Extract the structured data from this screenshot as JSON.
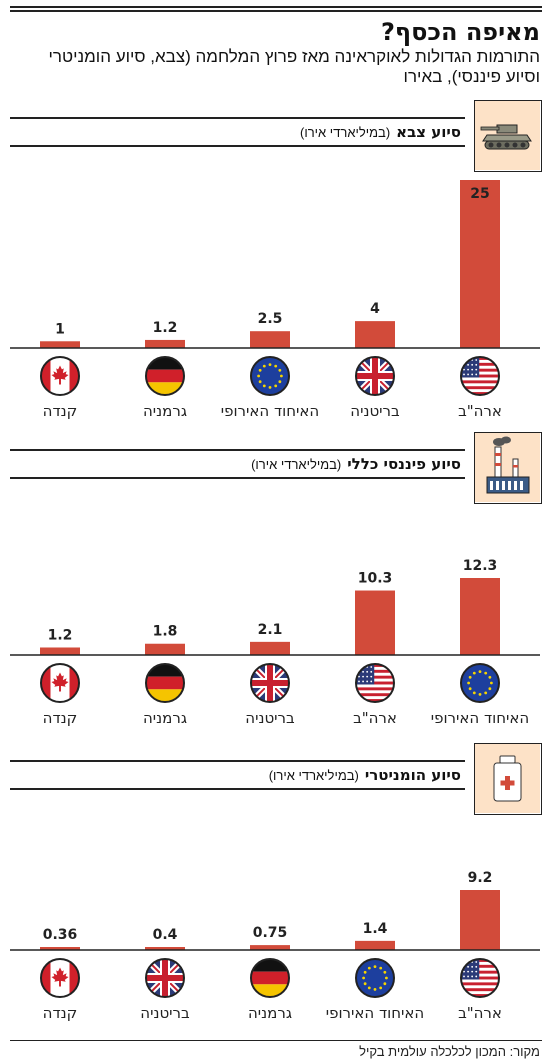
{
  "title": "מאיפה הכסף?",
  "subtitle": "התורמות הגדולות לאוקראינה מאז פרוץ המלחמה (צבא, סיוע הומניטרי וסיוע פיננסי), באירו",
  "source": "מקור: המכון לכלכלה עולמית בקיל",
  "colors": {
    "bar": "#d24b3a",
    "icon_bg": "#fde2c7",
    "axis": "#222222"
  },
  "chart_data": [
    {
      "type": "bar",
      "title": "סיוע צבא",
      "unit": "(במיליארדי אירו)",
      "icon": "tank-icon",
      "categories": [
        "ארה\"ב",
        "בריטניה",
        "האיחוד האירופי",
        "גרמניה",
        "קנדה"
      ],
      "flags": [
        "us",
        "uk",
        "eu",
        "de",
        "ca"
      ],
      "values": [
        25,
        4,
        2.5,
        1.2,
        1
      ],
      "value_labels": [
        "25",
        "4",
        "2.5",
        "1.2",
        "1"
      ],
      "ylim": [
        0,
        25
      ]
    },
    {
      "type": "bar",
      "title": "סיוע פיננסי כללי",
      "unit": "(במיליארדי אירו)",
      "icon": "factory-icon",
      "categories": [
        "האיחוד האירופי",
        "ארה\"ב",
        "בריטניה",
        "גרמניה",
        "קנדה"
      ],
      "flags": [
        "eu",
        "us",
        "uk",
        "de",
        "ca"
      ],
      "values": [
        12.3,
        10.3,
        2.1,
        1.8,
        1.2
      ],
      "value_labels": [
        "12.3",
        "10.3",
        "2.1",
        "1.8",
        "1.2"
      ],
      "ylim": [
        0,
        12.3
      ]
    },
    {
      "type": "bar",
      "title": "סיוע הומניטרי",
      "unit": "(במיליארדי אירו)",
      "icon": "medicine-bottle-icon",
      "categories": [
        "ארה\"ב",
        "האיחוד האירופי",
        "גרמניה",
        "בריטניה",
        "קנדה"
      ],
      "flags": [
        "us",
        "eu",
        "de",
        "uk",
        "ca"
      ],
      "values": [
        9.2,
        1.4,
        0.75,
        0.4,
        0.36
      ],
      "value_labels": [
        "9.2",
        "1.4",
        "0.75",
        "0.4",
        "0.36"
      ],
      "ylim": [
        0,
        9.2
      ]
    }
  ]
}
